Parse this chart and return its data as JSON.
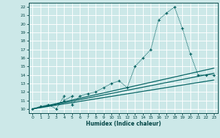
{
  "xlabel": "Humidex (Indice chaleur)",
  "background_color": "#cce8e8",
  "grid_color": "#ffffff",
  "line_color": "#006060",
  "xlim": [
    -0.5,
    23.5
  ],
  "ylim": [
    9.5,
    22.5
  ],
  "xticks": [
    0,
    1,
    2,
    3,
    4,
    5,
    6,
    7,
    8,
    9,
    10,
    11,
    12,
    13,
    14,
    15,
    16,
    17,
    18,
    19,
    20,
    21,
    22,
    23
  ],
  "yticks": [
    10,
    11,
    12,
    13,
    14,
    15,
    16,
    17,
    18,
    19,
    20,
    21,
    22
  ],
  "main_x": [
    0,
    1,
    2,
    3,
    4,
    4,
    5,
    5,
    6,
    7,
    8,
    9,
    10,
    11,
    12,
    13,
    14,
    15,
    16,
    17,
    18,
    19,
    20,
    21,
    22,
    23
  ],
  "main_y": [
    10.0,
    10.3,
    10.5,
    10.0,
    11.5,
    11.0,
    11.5,
    10.5,
    11.5,
    11.8,
    12.0,
    12.5,
    13.0,
    13.3,
    12.5,
    15.0,
    16.0,
    17.0,
    20.5,
    21.3,
    22.0,
    19.5,
    16.5,
    14.0,
    14.0,
    14.0
  ],
  "trend_lines": [
    {
      "x0": 0,
      "y0": 10.0,
      "x1": 23,
      "y1": 14.8
    },
    {
      "x0": 0,
      "y0": 10.0,
      "x1": 23,
      "y1": 14.2
    },
    {
      "x0": 0,
      "y0": 10.0,
      "x1": 23,
      "y1": 13.4
    }
  ]
}
